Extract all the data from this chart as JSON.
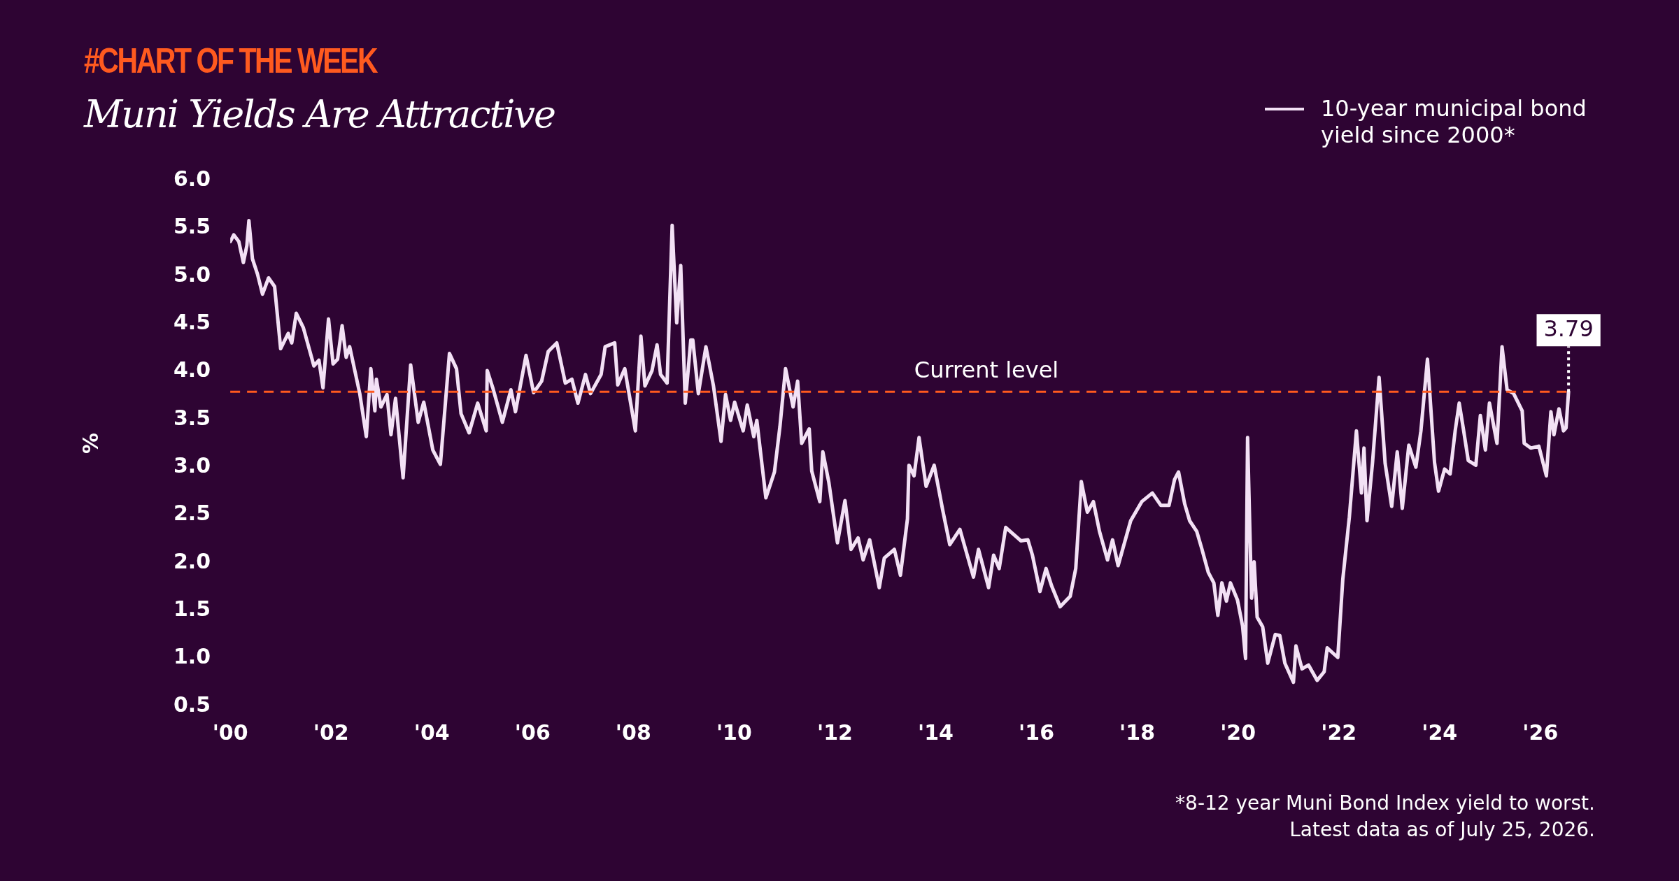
{
  "chart_data": {
    "type": "line",
    "title": "Muni Yields Are Attractive",
    "ylabel": "%",
    "legend": "top right",
    "marker": "none",
    "annotations": [
      "#CHART OF THE WEEK",
      {
        "text": "3.79",
        "x": 2026.56,
        "y": 3.79
      },
      "*8-12 year Muni Bond Index yield to worst.",
      "Latest data as of July 25, 2026."
    ],
    "xlim": [
      2000,
      2026.6
    ],
    "xticks": [
      {
        "value": 2000,
        "label": "'00"
      },
      {
        "value": 2002,
        "label": "'02"
      },
      {
        "value": 2004,
        "label": "'04"
      },
      {
        "value": 2006,
        "label": "'06"
      },
      {
        "value": 2008,
        "label": "'08"
      },
      {
        "value": 2010,
        "label": "'10"
      },
      {
        "value": 2012,
        "label": "'12"
      },
      {
        "value": 2014,
        "label": "'14"
      },
      {
        "value": 2016,
        "label": "'16"
      },
      {
        "value": 2018,
        "label": "'18"
      },
      {
        "value": 2020,
        "label": "'20"
      },
      {
        "value": 2022,
        "label": "'22"
      },
      {
        "value": 2024,
        "label": "'24"
      },
      {
        "value": 2026,
        "label": "'26"
      }
    ],
    "ylim": [
      0.5,
      6.0
    ],
    "yticks": [
      {
        "value": 0.5,
        "label": "0.5"
      },
      {
        "value": 1,
        "label": "1.0"
      },
      {
        "value": 1.5,
        "label": "1.5"
      },
      {
        "value": 2,
        "label": "2.0"
      },
      {
        "value": 2.5,
        "label": "2.5"
      },
      {
        "value": 3,
        "label": "3.0"
      },
      {
        "value": 3.5,
        "label": "3.5"
      },
      {
        "value": 4,
        "label": "4.0"
      },
      {
        "value": 4.5,
        "label": "4.5"
      },
      {
        "value": 5,
        "label": "5.0"
      },
      {
        "value": 5.5,
        "label": "5.5"
      },
      {
        "value": 6,
        "label": "6.0"
      }
    ],
    "ref_lines": [
      {
        "axis": "y",
        "value": 3.79,
        "label": "Current level",
        "color": "#ff5a1f",
        "line_style": "dashed"
      }
    ],
    "x": [
      2000.0,
      2000.07,
      2000.17,
      2000.26,
      2000.33,
      2000.37,
      2000.44,
      2000.54,
      2000.64,
      2000.76,
      2000.88,
      2001.0,
      2001.15,
      2001.22,
      2001.31,
      2001.45,
      2001.66,
      2001.76,
      2001.84,
      2001.95,
      2002.04,
      2002.13,
      2002.22,
      2002.3,
      2002.37,
      2002.57,
      2002.7,
      2002.79,
      2002.87,
      2002.9,
      2002.99,
      2003.11,
      2003.19,
      2003.28,
      2003.43,
      2003.58,
      2003.73,
      2003.84,
      2004.02,
      2004.17,
      2004.35,
      2004.49,
      2004.58,
      2004.74,
      2004.91,
      2005.08,
      2005.1,
      2005.21,
      2005.4,
      2005.57,
      2005.66,
      2005.87,
      2006.02,
      2006.18,
      2006.31,
      2006.48,
      2006.65,
      2006.78,
      2006.9,
      2007.05,
      2007.15,
      2007.36,
      2007.44,
      2007.63,
      2007.69,
      2007.83,
      2008.04,
      2008.15,
      2008.23,
      2008.37,
      2008.47,
      2008.54,
      2008.67,
      2008.77,
      2008.86,
      2008.94,
      2009.03,
      2009.14,
      2009.18,
      2009.29,
      2009.44,
      2009.59,
      2009.74,
      2009.83,
      2009.93,
      2010.01,
      2010.18,
      2010.26,
      2010.39,
      2010.45,
      2010.63,
      2010.8,
      2010.91,
      2011.02,
      2011.17,
      2011.26,
      2011.34,
      2011.49,
      2011.54,
      2011.7,
      2011.76,
      2011.88,
      2012.05,
      2012.2,
      2012.32,
      2012.46,
      2012.56,
      2012.69,
      2012.88,
      2012.98,
      2013.18,
      2013.3,
      2013.44,
      2013.47,
      2013.57,
      2013.67,
      2013.81,
      2013.97,
      2014.14,
      2014.28,
      2014.48,
      2014.75,
      2014.85,
      2015.05,
      2015.15,
      2015.26,
      2015.39,
      2015.69,
      2015.83,
      2015.92,
      2016.07,
      2016.19,
      2016.3,
      2016.47,
      2016.67,
      2016.78,
      2016.89,
      2017.01,
      2017.13,
      2017.25,
      2017.41,
      2017.51,
      2017.62,
      2017.87,
      2018.09,
      2018.3,
      2018.47,
      2018.63,
      2018.74,
      2018.82,
      2018.94,
      2019.04,
      2019.18,
      2019.28,
      2019.41,
      2019.52,
      2019.6,
      2019.68,
      2019.77,
      2019.85,
      2019.99,
      2020.09,
      2020.15,
      2020.19,
      2020.24,
      2020.27,
      2020.32,
      2020.38,
      2020.49,
      2020.59,
      2020.74,
      2020.83,
      2020.93,
      2021.1,
      2021.15,
      2021.27,
      2021.4,
      2021.57,
      2021.71,
      2021.77,
      2021.98,
      2022.08,
      2022.21,
      2022.35,
      2022.45,
      2022.5,
      2022.56,
      2022.67,
      2022.8,
      2022.92,
      2023.05,
      2023.16,
      2023.26,
      2023.39,
      2023.53,
      2023.63,
      2023.76,
      2023.9,
      2023.98,
      2024.1,
      2024.21,
      2024.31,
      2024.39,
      2024.47,
      2024.57,
      2024.72,
      2024.81,
      2024.91,
      2024.99,
      2025.14,
      2025.24,
      2025.34,
      2025.47,
      2025.64,
      2025.68,
      2025.81,
      2025.97,
      2026.12,
      2026.21,
      2026.27,
      2026.37,
      2026.46,
      2026.51,
      2026.56
    ],
    "series": [
      {
        "name": "10-year municipal bond yield since 2000*",
        "color": "#f3e1f5",
        "values": [
          5.36,
          5.43,
          5.36,
          5.14,
          5.32,
          5.58,
          5.18,
          5.02,
          4.81,
          4.98,
          4.89,
          4.24,
          4.4,
          4.3,
          4.61,
          4.46,
          4.06,
          4.12,
          3.83,
          4.55,
          4.08,
          4.13,
          4.48,
          4.15,
          4.26,
          3.77,
          3.32,
          4.03,
          3.59,
          3.92,
          3.63,
          3.76,
          3.34,
          3.72,
          2.89,
          4.07,
          3.47,
          3.68,
          3.18,
          3.03,
          4.19,
          4.03,
          3.56,
          3.36,
          3.67,
          3.38,
          4.01,
          3.83,
          3.47,
          3.81,
          3.58,
          4.17,
          3.78,
          3.9,
          4.21,
          4.3,
          3.88,
          3.92,
          3.67,
          3.97,
          3.77,
          3.97,
          4.26,
          4.3,
          3.86,
          4.03,
          3.38,
          4.37,
          3.85,
          4.01,
          4.28,
          3.97,
          3.88,
          5.53,
          4.51,
          5.11,
          3.67,
          4.33,
          4.33,
          3.77,
          4.26,
          3.85,
          3.27,
          3.76,
          3.49,
          3.68,
          3.38,
          3.65,
          3.32,
          3.49,
          2.68,
          2.95,
          3.43,
          4.03,
          3.63,
          3.9,
          3.25,
          3.4,
          2.96,
          2.64,
          3.16,
          2.84,
          2.21,
          2.65,
          2.14,
          2.26,
          2.03,
          2.24,
          1.74,
          2.05,
          2.14,
          1.87,
          2.46,
          3.02,
          2.91,
          3.31,
          2.8,
          3.02,
          2.55,
          2.19,
          2.35,
          1.85,
          2.14,
          1.74,
          2.08,
          1.94,
          2.37,
          2.23,
          2.24,
          2.08,
          1.7,
          1.94,
          1.76,
          1.54,
          1.65,
          1.94,
          2.85,
          2.53,
          2.64,
          2.33,
          2.03,
          2.24,
          1.97,
          2.44,
          2.64,
          2.73,
          2.6,
          2.6,
          2.87,
          2.95,
          2.62,
          2.44,
          2.33,
          2.15,
          1.9,
          1.79,
          1.45,
          1.79,
          1.6,
          1.79,
          1.61,
          1.34,
          1.0,
          3.31,
          2.23,
          1.63,
          2.01,
          1.43,
          1.33,
          0.95,
          1.25,
          1.24,
          0.95,
          0.75,
          1.13,
          0.89,
          0.93,
          0.77,
          0.86,
          1.11,
          1.01,
          1.83,
          2.48,
          3.38,
          2.73,
          3.2,
          2.44,
          3.05,
          3.94,
          3.04,
          2.59,
          3.16,
          2.57,
          3.23,
          3.0,
          3.38,
          4.13,
          3.05,
          2.75,
          2.98,
          2.93,
          3.38,
          3.67,
          3.41,
          3.07,
          3.02,
          3.54,
          3.18,
          3.67,
          3.25,
          4.26,
          3.81,
          3.77,
          3.59,
          3.25,
          3.2,
          3.22,
          2.91,
          3.58,
          3.34,
          3.61,
          3.38,
          3.41,
          3.79
        ]
      }
    ]
  }
}
